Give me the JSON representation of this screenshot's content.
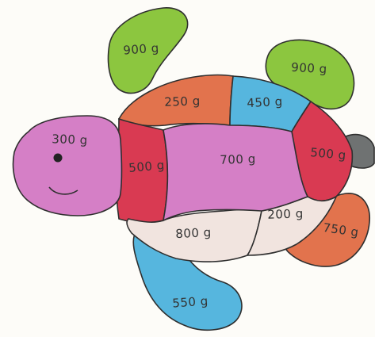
{
  "colors": {
    "green": "#8cc63f",
    "orange": "#e2734d",
    "blue": "#56b6de",
    "pink": "#d57fc6",
    "red": "#d93a52",
    "beige": "#f1e4df",
    "gray": "#6f7272",
    "outline": "#2f2f2f"
  },
  "turtle": {
    "parts": [
      {
        "part": "front-left-flipper",
        "color": "green",
        "label": "900 g"
      },
      {
        "part": "front-right-flipper",
        "color": "green",
        "label": "900 g"
      },
      {
        "part": "shell-top-orange",
        "color": "orange",
        "label": "250 g"
      },
      {
        "part": "shell-top-blue",
        "color": "blue",
        "label": "450 g"
      },
      {
        "part": "head",
        "color": "pink",
        "label": "300 g"
      },
      {
        "part": "shell-left-red",
        "color": "red",
        "label": "500 g"
      },
      {
        "part": "shell-center",
        "color": "pink",
        "label": "700 g"
      },
      {
        "part": "shell-right-red",
        "color": "red",
        "label": "500 g"
      },
      {
        "part": "shell-bottom-left",
        "color": "beige",
        "label": "800 g"
      },
      {
        "part": "shell-bottom-right",
        "color": "beige",
        "label": "200 g"
      },
      {
        "part": "back-right-flipper",
        "color": "orange",
        "label": "750 g"
      },
      {
        "part": "back-left-flipper",
        "color": "blue",
        "label": "550 g"
      },
      {
        "part": "tail",
        "color": "gray",
        "label": ""
      }
    ]
  }
}
